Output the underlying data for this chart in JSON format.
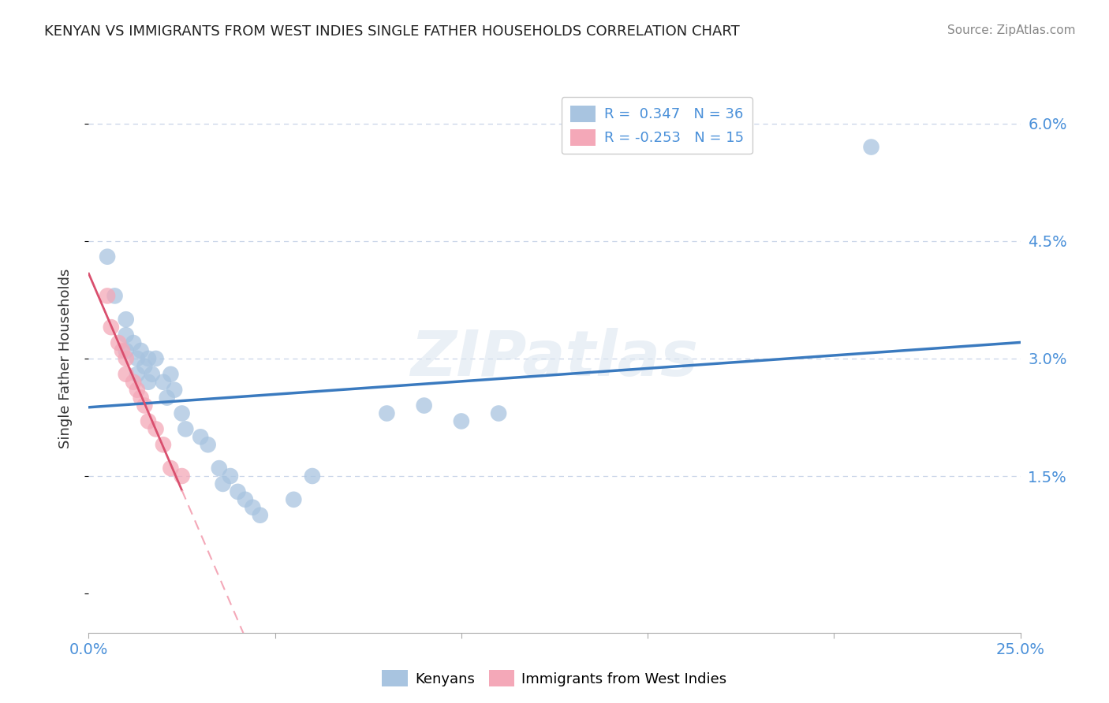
{
  "title": "KENYAN VS IMMIGRANTS FROM WEST INDIES SINGLE FATHER HOUSEHOLDS CORRELATION CHART",
  "source": "Source: ZipAtlas.com",
  "ylabel": "Single Father Households",
  "xlim": [
    0.0,
    0.25
  ],
  "ylim": [
    -0.005,
    0.065
  ],
  "xticks": [
    0.0,
    0.05,
    0.1,
    0.15,
    0.2,
    0.25
  ],
  "yticks": [
    0.0,
    0.015,
    0.03,
    0.045,
    0.06
  ],
  "kenyan_color": "#a8c4e0",
  "westindies_color": "#f4a8b8",
  "kenyan_line_color": "#3a7abf",
  "westindies_line_color": "#d94f6e",
  "background_color": "#ffffff",
  "watermark": "ZIPatlas",
  "grid_color": "#c8d4e8",
  "kenyan_scatter": [
    [
      0.005,
      0.043
    ],
    [
      0.007,
      0.038
    ],
    [
      0.01,
      0.035
    ],
    [
      0.01,
      0.033
    ],
    [
      0.01,
      0.031
    ],
    [
      0.012,
      0.032
    ],
    [
      0.013,
      0.03
    ],
    [
      0.013,
      0.028
    ],
    [
      0.014,
      0.031
    ],
    [
      0.015,
      0.029
    ],
    [
      0.016,
      0.03
    ],
    [
      0.016,
      0.027
    ],
    [
      0.017,
      0.028
    ],
    [
      0.018,
      0.03
    ],
    [
      0.02,
      0.027
    ],
    [
      0.021,
      0.025
    ],
    [
      0.022,
      0.028
    ],
    [
      0.023,
      0.026
    ],
    [
      0.025,
      0.023
    ],
    [
      0.026,
      0.021
    ],
    [
      0.03,
      0.02
    ],
    [
      0.032,
      0.019
    ],
    [
      0.035,
      0.016
    ],
    [
      0.036,
      0.014
    ],
    [
      0.038,
      0.015
    ],
    [
      0.04,
      0.013
    ],
    [
      0.042,
      0.012
    ],
    [
      0.044,
      0.011
    ],
    [
      0.046,
      0.01
    ],
    [
      0.055,
      0.012
    ],
    [
      0.06,
      0.015
    ],
    [
      0.08,
      0.023
    ],
    [
      0.09,
      0.024
    ],
    [
      0.1,
      0.022
    ],
    [
      0.11,
      0.023
    ],
    [
      0.21,
      0.057
    ]
  ],
  "westindies_scatter": [
    [
      0.005,
      0.038
    ],
    [
      0.006,
      0.034
    ],
    [
      0.008,
      0.032
    ],
    [
      0.009,
      0.031
    ],
    [
      0.01,
      0.03
    ],
    [
      0.01,
      0.028
    ],
    [
      0.012,
      0.027
    ],
    [
      0.013,
      0.026
    ],
    [
      0.014,
      0.025
    ],
    [
      0.015,
      0.024
    ],
    [
      0.016,
      0.022
    ],
    [
      0.018,
      0.021
    ],
    [
      0.02,
      0.019
    ],
    [
      0.022,
      0.016
    ],
    [
      0.025,
      0.015
    ]
  ]
}
